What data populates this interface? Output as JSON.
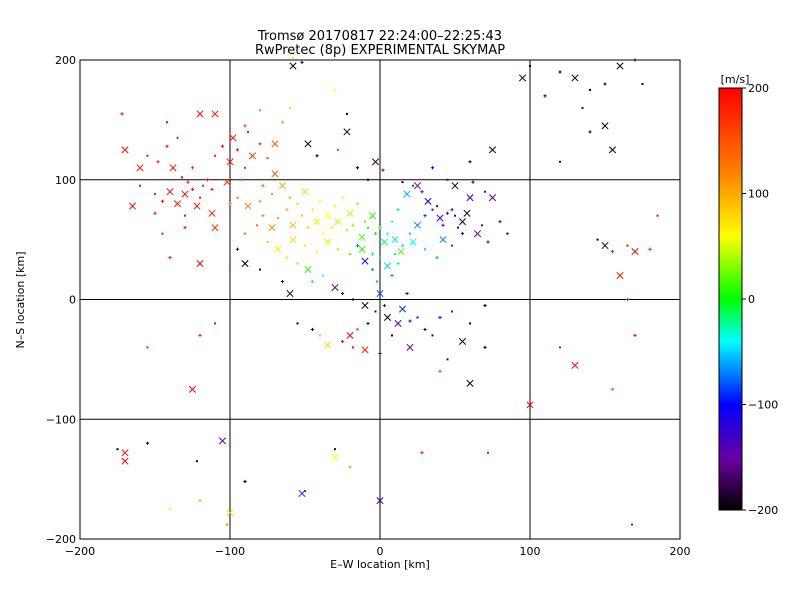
{
  "chart_data": {
    "type": "scatter",
    "title": "Tromsø 20170817 22:24:00–22:25:43",
    "subtitle": "RwPretec (8p) EXPERIMENTAL SKYMAP",
    "xlabel": "E–W location [km]",
    "ylabel": "N–S location [km]",
    "xlim": [
      -200,
      200
    ],
    "ylim": [
      -200,
      200
    ],
    "xticks": [
      -200,
      -100,
      0,
      100,
      200
    ],
    "yticks": [
      -200,
      -100,
      0,
      100,
      200
    ],
    "xtick_labels": [
      "−200",
      "−100",
      "0",
      "100",
      "200"
    ],
    "ytick_labels": [
      "−200",
      "−100",
      "0",
      "100",
      "200"
    ],
    "grid": true,
    "colorbar": {
      "label": "[m/s]",
      "range": [
        -200,
        200
      ],
      "ticks": [
        200,
        100,
        0,
        -100,
        -200
      ],
      "tick_labels": [
        "200",
        "100",
        "0",
        "−100",
        "−200"
      ],
      "colormap": "rainbow (black–purple–blue–cyan–green–yellow–orange–red)"
    },
    "markers": [
      "x",
      "+",
      "dot"
    ],
    "points": [
      [
        -130,
        88,
        200
      ],
      [
        -125,
        92,
        195
      ],
      [
        -120,
        85,
        190
      ],
      [
        -135,
        80,
        185
      ],
      [
        -128,
        98,
        200
      ],
      [
        -118,
        95,
        180
      ],
      [
        -140,
        90,
        190
      ],
      [
        -145,
        82,
        200
      ],
      [
        -150,
        88,
        195
      ],
      [
        -122,
        78,
        185
      ],
      [
        -115,
        100,
        175
      ],
      [
        -132,
        102,
        200
      ],
      [
        -138,
        110,
        190
      ],
      [
        -148,
        115,
        195
      ],
      [
        -155,
        120,
        200
      ],
      [
        -160,
        110,
        185
      ],
      [
        -142,
        128,
        200
      ],
      [
        -135,
        135,
        190
      ],
      [
        -120,
        155,
        200
      ],
      [
        -125,
        110,
        180
      ],
      [
        -110,
        120,
        190
      ],
      [
        -100,
        115,
        185
      ],
      [
        -95,
        125,
        200
      ],
      [
        -90,
        110,
        175
      ],
      [
        -85,
        120,
        170
      ],
      [
        -80,
        130,
        180
      ],
      [
        -88,
        140,
        195
      ],
      [
        -98,
        135,
        185
      ],
      [
        -105,
        128,
        200
      ],
      [
        -75,
        118,
        160
      ],
      [
        -70,
        105,
        150
      ],
      [
        -78,
        95,
        140
      ],
      [
        -92,
        100,
        160
      ],
      [
        -102,
        98,
        170
      ],
      [
        -112,
        92,
        190
      ],
      [
        -160,
        95,
        200
      ],
      [
        -165,
        78,
        195
      ],
      [
        -150,
        72,
        185
      ],
      [
        -130,
        70,
        190
      ],
      [
        -112,
        72,
        175
      ],
      [
        -100,
        80,
        150
      ],
      [
        -95,
        85,
        135
      ],
      [
        -88,
        78,
        120
      ],
      [
        -80,
        82,
        110
      ],
      [
        -72,
        88,
        115
      ],
      [
        -65,
        95,
        100
      ],
      [
        -60,
        85,
        95
      ],
      [
        -55,
        80,
        85
      ],
      [
        -50,
        90,
        80
      ],
      [
        -45,
        75,
        70
      ],
      [
        -40,
        82,
        65
      ],
      [
        -35,
        70,
        60
      ],
      [
        -30,
        78,
        55
      ],
      [
        -25,
        85,
        45
      ],
      [
        -20,
        72,
        40
      ],
      [
        -15,
        80,
        30
      ],
      [
        -10,
        65,
        20
      ],
      [
        -5,
        70,
        10
      ],
      [
        0,
        60,
        0
      ],
      [
        5,
        55,
        -15
      ],
      [
        10,
        50,
        -30
      ],
      [
        15,
        45,
        -40
      ],
      [
        20,
        55,
        -55
      ],
      [
        25,
        62,
        -70
      ],
      [
        30,
        70,
        -90
      ],
      [
        35,
        75,
        -110
      ],
      [
        40,
        68,
        -130
      ],
      [
        45,
        72,
        -150
      ],
      [
        50,
        70,
        -170
      ],
      [
        55,
        65,
        -185
      ],
      [
        48,
        75,
        -160
      ],
      [
        52,
        60,
        -175
      ],
      [
        58,
        72,
        -195
      ],
      [
        42,
        62,
        -140
      ],
      [
        38,
        78,
        -120
      ],
      [
        32,
        82,
        -100
      ],
      [
        28,
        90,
        -95
      ],
      [
        22,
        95,
        -80
      ],
      [
        18,
        88,
        -60
      ],
      [
        12,
        75,
        -50
      ],
      [
        8,
        65,
        -35
      ],
      [
        3,
        48,
        -20
      ],
      [
        -3,
        55,
        -5
      ],
      [
        -8,
        60,
        8
      ],
      [
        -12,
        52,
        18
      ],
      [
        -18,
        62,
        28
      ],
      [
        -22,
        58,
        35
      ],
      [
        -28,
        65,
        45
      ],
      [
        -32,
        60,
        55
      ],
      [
        -38,
        55,
        62
      ],
      [
        -42,
        65,
        70
      ],
      [
        -48,
        60,
        78
      ],
      [
        -52,
        70,
        88
      ],
      [
        -58,
        62,
        92
      ],
      [
        -62,
        75,
        98
      ],
      [
        -68,
        68,
        105
      ],
      [
        -72,
        60,
        110
      ],
      [
        -78,
        70,
        118
      ],
      [
        -82,
        62,
        125
      ],
      [
        -58,
        50,
        80
      ],
      [
        -50,
        45,
        72
      ],
      [
        -42,
        40,
        62
      ],
      [
        -35,
        48,
        50
      ],
      [
        -28,
        42,
        38
      ],
      [
        -20,
        38,
        22
      ],
      [
        -12,
        42,
        10
      ],
      [
        -5,
        38,
        -10
      ],
      [
        0,
        35,
        -30
      ],
      [
        5,
        28,
        -50
      ],
      [
        8,
        20,
        -65
      ],
      [
        -5,
        25,
        -85
      ],
      [
        -10,
        32,
        -95
      ],
      [
        -15,
        45,
        -75
      ],
      [
        10,
        38,
        -45
      ],
      [
        14,
        40,
        20
      ],
      [
        12,
        30,
        -25
      ],
      [
        -2,
        15,
        -60
      ],
      [
        0,
        5,
        -80
      ],
      [
        3,
        -5,
        -150
      ],
      [
        -3,
        -10,
        -180
      ],
      [
        5,
        -15,
        -200
      ],
      [
        -8,
        -20,
        -190
      ],
      [
        -15,
        -25,
        185
      ],
      [
        -20,
        -30,
        195
      ],
      [
        -25,
        -35,
        200
      ],
      [
        -18,
        -40,
        190
      ],
      [
        -10,
        -42,
        180
      ],
      [
        0,
        -45,
        -190
      ],
      [
        8,
        -30,
        -200
      ],
      [
        12,
        -20,
        -140
      ],
      [
        20,
        -18,
        -120
      ],
      [
        25,
        -15,
        -100
      ],
      [
        15,
        -8,
        -90
      ],
      [
        18,
        5,
        -110
      ],
      [
        -40,
        -30,
        30
      ],
      [
        -35,
        -38,
        80
      ],
      [
        -45,
        -25,
        -200
      ],
      [
        -55,
        -20,
        -195
      ],
      [
        -60,
        5,
        -185
      ],
      [
        -65,
        15,
        -175
      ],
      [
        -80,
        25,
        -180
      ],
      [
        -90,
        30,
        -200
      ],
      [
        -95,
        42,
        -190
      ],
      [
        -100,
        28,
        150
      ],
      [
        -120,
        30,
        195
      ],
      [
        -140,
        35,
        200
      ],
      [
        -155,
        -40,
        185
      ],
      [
        -125,
        -75,
        200
      ],
      [
        -120,
        -30,
        190
      ],
      [
        -110,
        -20,
        200
      ],
      [
        160,
        195,
        -200
      ],
      [
        150,
        180,
        -190
      ],
      [
        140,
        175,
        -200
      ],
      [
        130,
        185,
        -180
      ],
      [
        120,
        190,
        -195
      ],
      [
        100,
        195,
        -200
      ],
      [
        95,
        185,
        -185
      ],
      [
        110,
        170,
        -200
      ],
      [
        135,
        160,
        -180
      ],
      [
        150,
        145,
        -195
      ],
      [
        170,
        200,
        -200
      ],
      [
        175,
        180,
        -190
      ],
      [
        155,
        125,
        -200
      ],
      [
        140,
        140,
        -195
      ],
      [
        120,
        115,
        -185
      ],
      [
        75,
        125,
        -190
      ],
      [
        60,
        115,
        -200
      ],
      [
        145,
        50,
        -200
      ],
      [
        150,
        45,
        -180
      ],
      [
        155,
        40,
        190
      ],
      [
        165,
        45,
        195
      ],
      [
        170,
        40,
        200
      ],
      [
        180,
        42,
        195
      ],
      [
        185,
        70,
        200
      ],
      [
        160,
        20,
        185
      ],
      [
        165,
        0,
        190
      ],
      [
        120,
        -40,
        200
      ],
      [
        130,
        -55,
        195
      ],
      [
        170,
        -30,
        200
      ],
      [
        155,
        -75,
        185
      ],
      [
        100,
        -88,
        200
      ],
      [
        70,
        -5,
        -200
      ],
      [
        60,
        -20,
        -180
      ],
      [
        55,
        -35,
        -190
      ],
      [
        70,
        -40,
        -200
      ],
      [
        45,
        -50,
        -180
      ],
      [
        60,
        -70,
        -195
      ],
      [
        40,
        -60,
        150
      ],
      [
        -175,
        -125,
        -200
      ],
      [
        -170,
        -128,
        190
      ],
      [
        -155,
        -120,
        -200
      ],
      [
        -122,
        -135,
        -195
      ],
      [
        -105,
        -118,
        -140
      ],
      [
        -90,
        -152,
        -200
      ],
      [
        -30,
        -125,
        -200
      ],
      [
        -30,
        -132,
        60
      ],
      [
        -20,
        -140,
        110
      ],
      [
        -50,
        -160,
        -80
      ],
      [
        -52,
        -162,
        -90
      ],
      [
        28,
        -128,
        200
      ],
      [
        72,
        -128,
        195
      ],
      [
        0,
        -168,
        -120
      ],
      [
        -120,
        -168,
        20
      ],
      [
        -140,
        -175,
        60
      ],
      [
        -100,
        -178,
        80
      ],
      [
        -102,
        -188,
        110
      ],
      [
        168,
        -188,
        200
      ],
      [
        -170,
        -135,
        200
      ],
      [
        -30,
        175,
        60
      ],
      [
        -22,
        155,
        -200
      ],
      [
        -58,
        195,
        -200
      ],
      [
        -52,
        198,
        -190
      ],
      [
        -58,
        202,
        70
      ],
      [
        -170,
        125,
        195
      ],
      [
        -172,
        155,
        200
      ],
      [
        -142,
        148,
        200
      ],
      [
        -110,
        155,
        190
      ],
      [
        -90,
        145,
        160
      ],
      [
        -80,
        158,
        120
      ],
      [
        -70,
        130,
        140
      ],
      [
        -65,
        148,
        100
      ],
      [
        -60,
        160,
        80
      ],
      [
        -48,
        130,
        -190
      ],
      [
        -42,
        120,
        -200
      ],
      [
        -28,
        125,
        160
      ],
      [
        -22,
        140,
        -185
      ],
      [
        -15,
        110,
        -200
      ],
      [
        -8,
        100,
        -195
      ],
      [
        -3,
        115,
        -180
      ],
      [
        2,
        108,
        -160
      ],
      [
        15,
        98,
        -200
      ],
      [
        25,
        95,
        -150
      ],
      [
        35,
        110,
        -100
      ],
      [
        45,
        100,
        -130
      ],
      [
        50,
        95,
        -190
      ],
      [
        62,
        98,
        -175
      ],
      [
        70,
        90,
        -160
      ],
      [
        75,
        85,
        -140
      ],
      [
        80,
        65,
        -120
      ],
      [
        85,
        55,
        -200
      ],
      [
        65,
        55,
        -155
      ],
      [
        72,
        48,
        -135
      ],
      [
        68,
        62,
        -145
      ],
      [
        60,
        85,
        -120
      ],
      [
        55,
        55,
        -100
      ],
      [
        48,
        45,
        -85
      ],
      [
        42,
        50,
        -70
      ],
      [
        38,
        35,
        -60
      ],
      [
        30,
        42,
        -50
      ],
      [
        22,
        48,
        -40
      ],
      [
        -130,
        60,
        200
      ],
      [
        -145,
        55,
        190
      ],
      [
        -110,
        60,
        170
      ],
      [
        -90,
        55,
        120
      ],
      [
        -75,
        48,
        90
      ],
      [
        -68,
        42,
        70
      ],
      [
        -62,
        35,
        50
      ],
      [
        -55,
        30,
        30
      ],
      [
        -48,
        25,
        10
      ],
      [
        -45,
        15,
        -20
      ],
      [
        -38,
        20,
        -40
      ],
      [
        -30,
        10,
        -150
      ],
      [
        -25,
        5,
        -170
      ],
      [
        -18,
        0,
        -190
      ],
      [
        -10,
        -5,
        -200
      ],
      [
        30,
        -25,
        -200
      ],
      [
        35,
        -30,
        -185
      ],
      [
        20,
        -40,
        -150
      ],
      [
        40,
        -15,
        -110
      ],
      [
        48,
        -10,
        -90
      ]
    ]
  }
}
